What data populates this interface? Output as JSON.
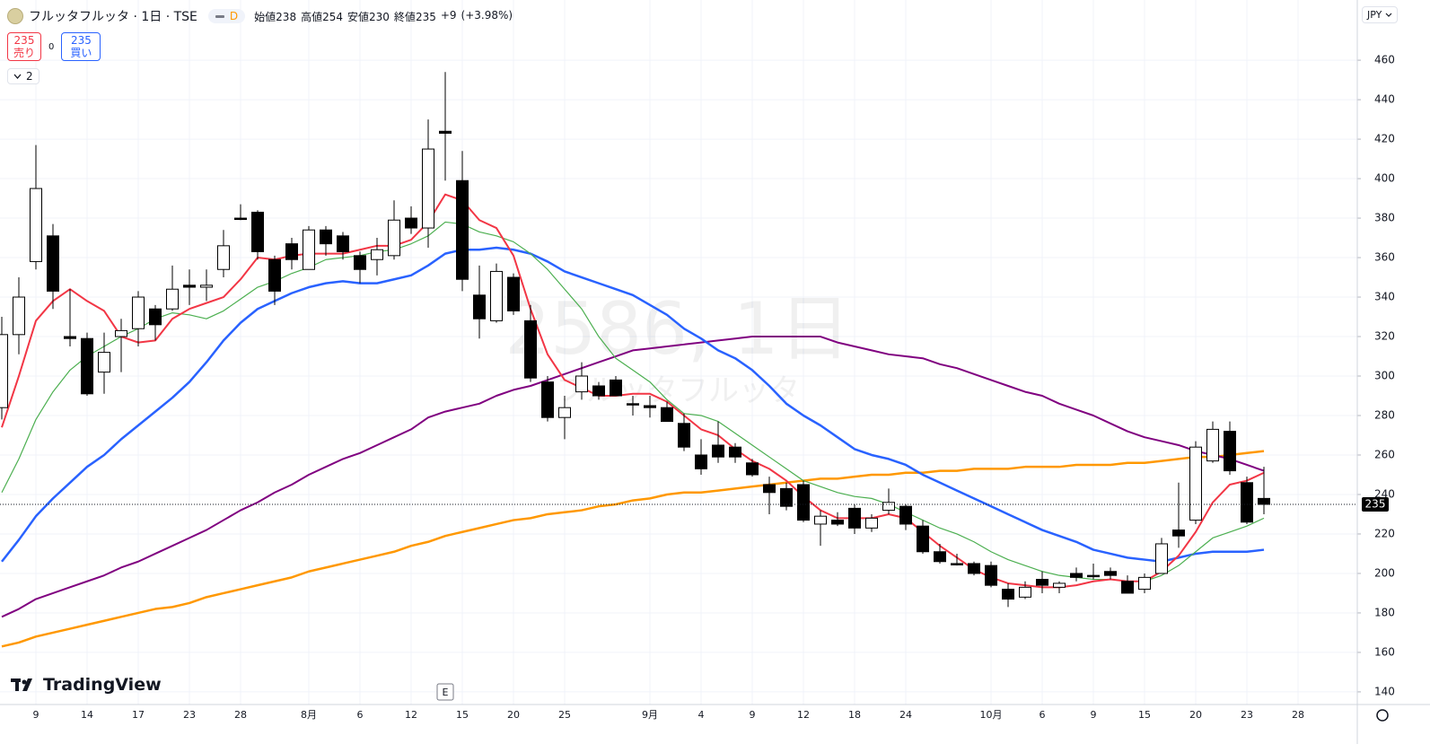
{
  "header": {
    "title": "フルッタフルッタ · 1日 · TSE",
    "interval_badge": "D",
    "quote": [
      {
        "label": "始値",
        "value": 238
      },
      {
        "label": "高値",
        "value": 254
      },
      {
        "label": "安値",
        "value": 230
      },
      {
        "label": "終値",
        "value": 235
      }
    ],
    "change": "+9",
    "change_percent": "(+3.98%)"
  },
  "trade": {
    "sell_price": 235,
    "sell_label": "売り",
    "spread": 0,
    "buy_price": 235,
    "buy_label": "買い"
  },
  "indicators_collapsed": 2,
  "currency": "JPY",
  "watermark": {
    "title": "2586, 1日",
    "subtitle": "フルッタフルッタ"
  },
  "brand": "TradingView",
  "event": "E",
  "chart_data": {
    "type": "candlestick",
    "categories": [
      null,
      null,
      "9",
      null,
      null,
      "14",
      null,
      null,
      "17",
      null,
      null,
      "23",
      null,
      null,
      "28",
      null,
      null,
      null,
      "8月",
      null,
      null,
      "6",
      null,
      null,
      "12",
      null,
      null,
      "15",
      null,
      null,
      "20",
      null,
      null,
      "25",
      null,
      null,
      null,
      null,
      "9月",
      null,
      null,
      "4",
      null,
      null,
      "9",
      null,
      null,
      "12",
      null,
      null,
      "18",
      null,
      null,
      "24",
      null,
      null,
      null,
      null,
      "10月",
      null,
      null,
      "6",
      null,
      null,
      "9",
      null,
      null,
      "15",
      null,
      null,
      "20",
      null,
      null,
      "23",
      null,
      null,
      "28"
    ],
    "open": [
      284,
      321,
      358,
      371,
      320,
      319,
      302,
      320,
      324,
      334,
      334,
      346,
      345,
      354,
      380,
      383,
      359,
      367,
      354,
      374,
      371,
      361,
      359,
      361,
      380,
      375,
      424,
      399,
      341,
      328,
      350,
      328,
      297,
      279,
      292,
      295,
      298,
      286,
      285,
      284,
      276,
      260,
      265,
      264,
      256,
      245,
      243,
      245,
      225,
      227,
      233,
      223,
      232,
      234,
      224,
      211,
      205,
      205,
      204,
      192,
      188,
      197,
      193,
      200,
      199,
      201,
      196,
      192,
      200,
      222,
      227,
      257,
      272,
      246,
      238,
      null,
      null
    ],
    "high": [
      330,
      350,
      417,
      377,
      344,
      322,
      322,
      329,
      343,
      336,
      356,
      354,
      354,
      374,
      387,
      384,
      361,
      370,
      376,
      376,
      373,
      363,
      370,
      389,
      386,
      430,
      454,
      414,
      356,
      357,
      352,
      336,
      300,
      290,
      307,
      297,
      300,
      290,
      290,
      287,
      281,
      268,
      277,
      266,
      258,
      249,
      246,
      247,
      232,
      231,
      235,
      230,
      243,
      235,
      227,
      215,
      210,
      206,
      206,
      195,
      196,
      201,
      196,
      203,
      205,
      203,
      199,
      200,
      218,
      246,
      267,
      277,
      277,
      249,
      254,
      null,
      null
    ],
    "low": [
      278,
      311,
      354,
      334,
      315,
      290,
      291,
      302,
      315,
      318,
      333,
      336,
      338,
      350,
      379,
      359,
      336,
      354,
      354,
      361,
      359,
      347,
      351,
      359,
      372,
      365,
      399,
      343,
      319,
      327,
      331,
      297,
      277,
      268,
      288,
      288,
      290,
      280,
      279,
      277,
      262,
      250,
      256,
      256,
      249,
      230,
      232,
      226,
      214,
      224,
      220,
      221,
      230,
      222,
      210,
      205,
      204,
      199,
      193,
      183,
      187,
      190,
      190,
      196,
      197,
      197,
      190,
      190,
      200,
      213,
      225,
      256,
      250,
      225,
      230,
      null,
      null
    ],
    "close": [
      321,
      340,
      395,
      343,
      319,
      291,
      312,
      323,
      340,
      326,
      344,
      345,
      346,
      366,
      380,
      363,
      343,
      359,
      374,
      367,
      363,
      354,
      364,
      379,
      375,
      415,
      423,
      349,
      329,
      353,
      333,
      299,
      279,
      284,
      300,
      290,
      290,
      286,
      284,
      277,
      264,
      253,
      259,
      259,
      250,
      241,
      234,
      227,
      229,
      225,
      223,
      228,
      236,
      225,
      211,
      206,
      205,
      200,
      194,
      187,
      193,
      194,
      195,
      198,
      199,
      199,
      190,
      198,
      215,
      219,
      264,
      273,
      252,
      226,
      235,
      null,
      null
    ],
    "up_color": "#ffffff",
    "down_color": "#000000",
    "series": [
      {
        "color": "#ff9800",
        "values": [
          163,
          165,
          168,
          170,
          172,
          174,
          176,
          178,
          180,
          182,
          183,
          185,
          188,
          190,
          192,
          194,
          196,
          198,
          201,
          203,
          205,
          207,
          209,
          211,
          214,
          216,
          219,
          221,
          223,
          225,
          227,
          228,
          230,
          231,
          232,
          234,
          235,
          237,
          238,
          240,
          241,
          241,
          242,
          243,
          244,
          245,
          246,
          247,
          248,
          248,
          249,
          250,
          250,
          251,
          251,
          252,
          252,
          253,
          253,
          253,
          254,
          254,
          254,
          255,
          255,
          255,
          256,
          256,
          257,
          258,
          259,
          259,
          260,
          261,
          262,
          null,
          null
        ]
      },
      {
        "color": "#800080",
        "values": [
          178,
          182,
          187,
          190,
          193,
          196,
          199,
          203,
          206,
          210,
          214,
          218,
          222,
          227,
          232,
          236,
          241,
          245,
          250,
          254,
          258,
          261,
          265,
          269,
          273,
          279,
          282,
          284,
          286,
          290,
          293,
          295,
          298,
          301,
          304,
          307,
          310,
          313,
          314,
          315,
          316,
          317,
          318,
          319,
          320,
          320,
          320,
          320,
          320,
          317,
          315,
          313,
          311,
          310,
          309,
          306,
          304,
          301,
          298,
          295,
          292,
          290,
          286,
          283,
          280,
          276,
          272,
          269,
          267,
          265,
          262,
          260,
          258,
          255,
          252,
          null,
          null
        ]
      },
      {
        "color": "#2962ff",
        "values": [
          206,
          217,
          229,
          238,
          246,
          254,
          260,
          268,
          275,
          282,
          289,
          297,
          307,
          318,
          327,
          334,
          338,
          342,
          345,
          347,
          348,
          347,
          347,
          349,
          351,
          356,
          362,
          364,
          364,
          365,
          364,
          362,
          358,
          353,
          350,
          347,
          344,
          341,
          336,
          331,
          324,
          319,
          313,
          309,
          303,
          295,
          286,
          280,
          275,
          269,
          263,
          260,
          258,
          255,
          250,
          246,
          242,
          238,
          234,
          230,
          226,
          222,
          219,
          216,
          212,
          210,
          208,
          207,
          206,
          208,
          210,
          211,
          211,
          211,
          212,
          null,
          null
        ]
      },
      {
        "color": "#4caf50",
        "values": [
          241,
          258,
          278,
          292,
          303,
          310,
          315,
          320,
          324,
          329,
          332,
          331,
          329,
          333,
          339,
          345,
          348,
          352,
          355,
          359,
          360,
          361,
          363,
          364,
          367,
          371,
          378,
          377,
          373,
          371,
          368,
          362,
          354,
          344,
          334,
          320,
          309,
          303,
          297,
          288,
          281,
          280,
          277,
          271,
          265,
          259,
          253,
          247,
          244,
          241,
          239,
          238,
          235,
          231,
          227,
          223,
          220,
          216,
          211,
          207,
          204,
          201,
          199,
          198,
          197,
          197,
          196,
          196,
          199,
          204,
          211,
          218,
          221,
          224,
          228,
          null,
          null
        ]
      },
      {
        "color": "#f23645",
        "values": [
          274,
          300,
          328,
          338,
          344,
          338,
          333,
          320,
          317,
          318,
          329,
          334,
          337,
          340,
          349,
          360,
          359,
          361,
          362,
          362,
          362,
          364,
          366,
          366,
          369,
          378,
          392,
          389,
          379,
          375,
          361,
          334,
          311,
          298,
          294,
          290,
          290,
          291,
          291,
          287,
          280,
          273,
          270,
          263,
          257,
          253,
          247,
          239,
          232,
          228,
          228,
          228,
          230,
          228,
          221,
          214,
          208,
          202,
          198,
          195,
          194,
          193,
          193,
          194,
          196,
          197,
          196,
          196,
          201,
          209,
          221,
          236,
          245,
          247,
          251,
          null,
          null
        ]
      }
    ],
    "ylim": [
      133.6,
      490.5
    ],
    "yticks": [
      140,
      160,
      180,
      200,
      220,
      240,
      260,
      280,
      300,
      320,
      340,
      360,
      380,
      400,
      420,
      440,
      460
    ],
    "last_price": 235,
    "grid": true
  }
}
